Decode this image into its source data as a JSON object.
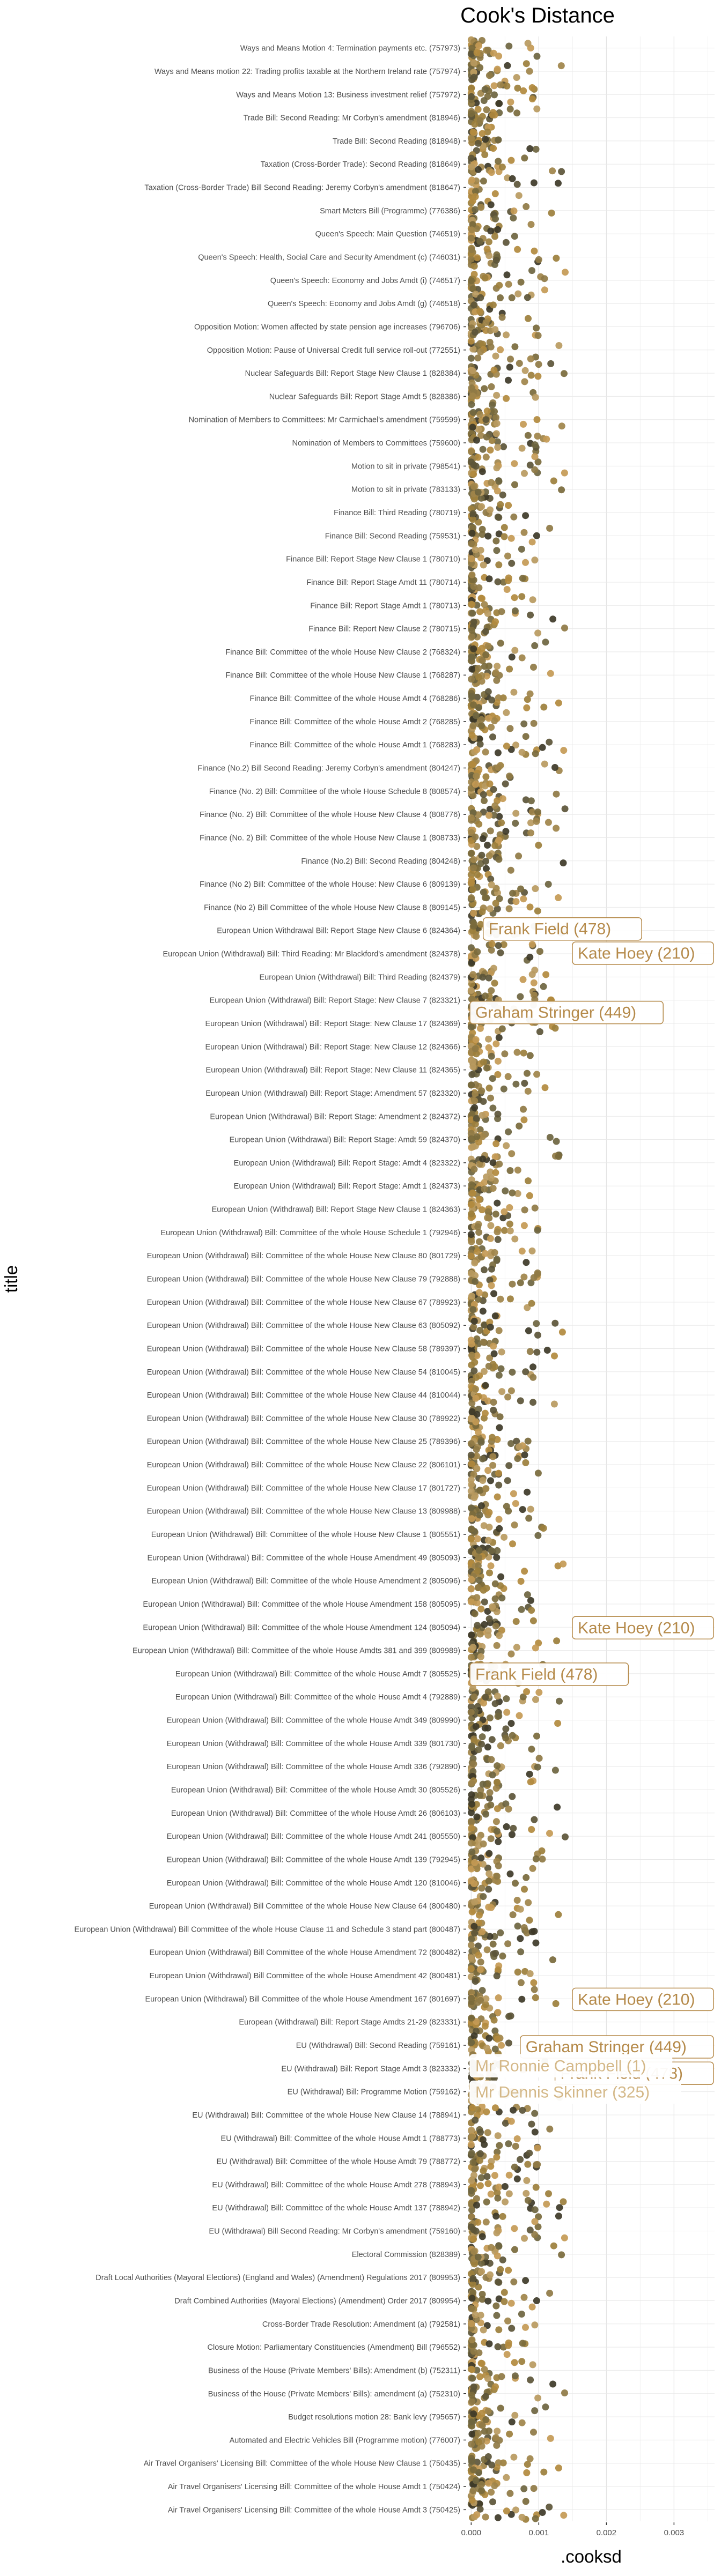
{
  "chart_data": {
    "type": "scatter",
    "title": "Cook's Distance",
    "xlabel": ".cooksd",
    "ylabel": "title",
    "xlim": [
      -5e-05,
      0.0036
    ],
    "x_ticks": [
      0.0,
      0.001,
      0.002,
      0.003
    ],
    "x_tick_labels": [
      "0.000",
      "0.001",
      "0.002",
      "0.003"
    ],
    "grid": true,
    "legend": "none",
    "categories": [
      "Ways and Means Motion 4: Termination payments etc. (757973)",
      "Ways and Means motion 22: Trading profits taxable at the Northern Ireland rate (757974)",
      "Ways and Means Motion 13: Business investment relief (757972)",
      "Trade Bill: Second Reading: Mr Corbyn's amendment (818946)",
      "Trade Bill: Second Reading (818948)",
      "Taxation (Cross-Border Trade): Second Reading (818649)",
      "Taxation (Cross-Border Trade) Bill Second Reading: Jeremy Corbyn's amendment  (818647)",
      "Smart Meters  Bill (Programme) (776386)",
      "Queen's Speech: Main Question (746519)",
      "Queen's Speech: Health, Social Care and Security Amendment (c) (746031)",
      "Queen's Speech: Economy and Jobs Amdt (i) (746517)",
      "Queen's Speech: Economy and Jobs Amdt (g) (746518)",
      "Opposition Motion: Women affected by state pension age increases (796706)",
      "Opposition Motion: Pause of Universal Credit full service roll-out (772551)",
      "Nuclear Safeguards Bill: Report Stage New Clause 1 (828384)",
      "Nuclear Safeguards Bill: Report Stage Amdt 5 (828386)",
      "Nomination of Members to Committees: Mr Carmichael's amendment (759599)",
      "Nomination of Members to Committees (759600)",
      "Motion to sit in private (798541)",
      "Motion to sit in private (783133)",
      "Finance Bill: Third Reading (780719)",
      "Finance Bill: Second Reading (759531)",
      "Finance Bill: Report Stage New Clause 1 (780710)",
      "Finance Bill: Report Stage Amdt 11 (780714)",
      "Finance Bill: Report Stage Amdt 1 (780713)",
      "Finance Bill: Report New Clause 2 (780715)",
      "Finance Bill: Committee of the whole House New Clause 2 (768324)",
      "Finance Bill: Committee of the whole House New Clause 1 (768287)",
      "Finance Bill: Committee of the whole House Amdt 4 (768286)",
      "Finance Bill: Committee of the whole House Amdt 2 (768285)",
      "Finance Bill: Committee of the whole House Amdt 1 (768283)",
      "Finance (No.2) Bill Second Reading: Jeremy Corbyn's amendment (804247)",
      "Finance (No. 2) Bill: Committee of the whole House Schedule 8 (808574)",
      "Finance (No. 2) Bill: Committee of the whole House New Clause 4 (808776)",
      "Finance (No. 2) Bill: Committee of the whole House New Clause 1 (808733)",
      "Finance (No.2) Bill: Second Reading (804248)",
      "Finance (No 2) Bill: Committee of the whole House: New Clause 6 (809139)",
      "Finance (No 2) Bill Committee of the whole House New Clause 8 (809145)",
      "European Union Withdrawal Bill: Report Stage New Clause 6  (824364)",
      "European Union (Withdrawal) Bill: Third Reading: Mr Blackford's amendment (824378)",
      "European Union (Withdrawal) Bill: Third Reading (824379)",
      "European Union (Withdrawal) Bill: Report Stage: New Clause 7 (823321)",
      "European Union (Withdrawal) Bill: Report Stage: New Clause 17 (824369)",
      "European Union (Withdrawal) Bill: Report Stage: New Clause 12 (824366)",
      "European Union (Withdrawal) Bill: Report Stage: New Clause 11 (824365)",
      "European Union (Withdrawal) Bill: Report Stage: Amendment 57 (823320)",
      "European Union (Withdrawal) Bill: Report Stage: Amendment 2 (824372)",
      "European Union (Withdrawal) Bill: Report Stage: Amdt 59 (824370)",
      "European Union (Withdrawal) Bill: Report Stage: Amdt 4 (823322)",
      "European Union (Withdrawal) Bill: Report Stage: Amdt 1 (824373)",
      "European Union (Withdrawal) Bill: Report Stage New Clause 1 (824363)",
      "European Union (Withdrawal) Bill: Committee of the whole House Schedule 1 (792946)",
      "European Union (Withdrawal) Bill: Committee of the whole House New Clause 80 (801729)",
      "European Union (Withdrawal) Bill: Committee of the whole House New Clause 79 (792888)",
      "European Union (Withdrawal) Bill: Committee of the whole House New Clause 67 (789923)",
      "European Union (Withdrawal) Bill: Committee of the whole House New Clause 63 (805092)",
      "European Union (Withdrawal) Bill: Committee of the whole House New Clause 58 (789397)",
      "European Union (Withdrawal) Bill: Committee of the whole House New Clause 54 (810045)",
      "European Union (Withdrawal) Bill: Committee of the whole House New Clause 44 (810044)",
      "European Union (Withdrawal) Bill: Committee of the whole House New Clause 30 (789922)",
      "European Union (Withdrawal) Bill: Committee of the whole House New Clause 25 (789396)",
      "European Union (Withdrawal) Bill: Committee of the whole House New Clause 22 (806101)",
      "European Union (Withdrawal) Bill: Committee of the whole House New Clause 17 (801727)",
      "European Union (Withdrawal) Bill: Committee of the whole House New Clause 13 (809988)",
      "European Union (Withdrawal) Bill: Committee of the whole House New Clause 1 (805551)",
      "European Union (Withdrawal) Bill: Committee of the whole House Amendment 49 (805093)",
      "European Union (Withdrawal) Bill: Committee of the whole House Amendment 2 (805096)",
      "European Union (Withdrawal) Bill: Committee of the whole House Amendment 158 (805095)",
      "European Union (Withdrawal) Bill: Committee of the whole House Amendment 124 (805094)",
      "European Union (Withdrawal) Bill: Committee of the whole House Amdts 381 and 399 (809989)",
      "European Union (Withdrawal) Bill: Committee of the whole House Amdt 7 (805525)",
      "European Union (Withdrawal) Bill: Committee of the whole House Amdt 4 (792889)",
      "European Union (Withdrawal) Bill: Committee of the whole House Amdt 349 (809990)",
      "European Union (Withdrawal) Bill: Committee of the whole House Amdt 339 (801730)",
      "European Union (Withdrawal) Bill: Committee of the whole House Amdt 336 (792890)",
      "European Union (Withdrawal) Bill: Committee of the whole House Amdt 30  (805526)",
      "European Union (Withdrawal) Bill: Committee of the whole House Amdt 26 (806103)",
      "European Union (Withdrawal) Bill: Committee of the whole House Amdt 241 (805550)",
      "European Union (Withdrawal) Bill: Committee of the whole House Amdt 139 (792945)",
      "European Union (Withdrawal) Bill: Committee of the whole House Amdt 120 (810046)",
      "European Union (Withdrawal) Bill Committee of the whole House New Clause 64 (800480)",
      "European Union (Withdrawal) Bill Committee of the whole House Clause 11 and Schedule 3 stand part (800487)",
      "European Union (Withdrawal) Bill Committee of the whole House Amendment 72 (800482)",
      "European Union (Withdrawal) Bill Committee of the whole House Amendment 42 (800481)",
      "European Union (Withdrawal) Bill Committee of the whole House Amendment 167 (801697)",
      "European (Withdrawal) Bill: Report Stage Amdts 21-29 (823331)",
      "EU (Withdrawal) Bill: Second Reading (759161)",
      "EU (Withdrawal) Bill: Report Stage Amdt 3 (823332)",
      "EU (Withdrawal) Bill: Programme Motion (759162)",
      "EU (Withdrawal) Bill: Committee of the whole House New Clause 14 (788941)",
      "EU (Withdrawal) Bill: Committee of the whole House Amdt 1 (788773)",
      "EU (Withdrawal) Bill: Committee of the whole House Amdt 79 (788772)",
      "EU (Withdrawal) Bill: Committee of the whole House Amdt 278 (788943)",
      "EU (Withdrawal) Bill: Committee of the whole House Amdt 137 (788942)",
      "EU (Withdrawal) Bill Second Reading: Mr Corbyn's amendment (759160)",
      "Electoral Commission (828389)",
      "Draft Local Authorities (Mayoral Elections) (England and Wales) (Amendment) Regulations 2017 (809953)",
      "Draft Combined Authorities (Mayoral Elections) (Amendment) Order 2017 (809954)",
      "Cross-Border Trade Resolution: Amendment (a) (792581)",
      "Closure Motion: Parliamentary Constituencies (Amendment) Bill (796552)",
      "Business of the House (Private Members' Bills): Amendment (b) (752311)",
      "Business of the House (Private Members' Bills): amendment (a) (752310)",
      "Budget resolutions motion 28: Bank levy (795657)",
      "Automated and Electric Vehicles Bill (Programme motion) (776007)",
      "Air Travel Organisers' Licensing Bill: Committee of the whole House New Clause 1 (750435)",
      "Air Travel Organisers' Licensing Bill: Committee of the whole House Amdt 1 (750424)",
      "Air Travel Organisers' Licensing Bill: Committee of the whole House Amdt 3 (750425)"
    ],
    "outliers": [
      {
        "category_index": 38,
        "x": 0.00135,
        "label": "Frank Field (478)"
      },
      {
        "category_index": 39,
        "x": 0.00295,
        "label": "Kate Hoey (210)"
      },
      {
        "category_index": 41,
        "x": 0.00118,
        "label": "Graham Stringer (449)"
      },
      {
        "category_index": 68,
        "x": 0.00305,
        "label": "Kate Hoey (210)"
      },
      {
        "category_index": 70,
        "x": 0.00115,
        "label": "Frank Field (478)"
      },
      {
        "category_index": 84,
        "x": 0.00315,
        "label": "Kate Hoey (210)"
      },
      {
        "category_index": 86,
        "x": 0.00275,
        "label": "Graham Stringer (449)"
      },
      {
        "category_index": 87,
        "x": 0.0029,
        "label": "Frank Field (478)"
      },
      {
        "category_index": 87,
        "x": 0.00025,
        "label": "Mr Ronnie Campbell (1)"
      },
      {
        "category_index": 88,
        "x": 0.0006,
        "label": "Mr Dennis Skinner (325)"
      }
    ],
    "colors": [
      "#3e3a28",
      "#5c5538",
      "#7a6a3c",
      "#8f7a45",
      "#a0844a",
      "#b28a3e",
      "#c49a55",
      "#9c7f3c",
      "#6e6540",
      "#b89a60"
    ],
    "label_color": "#b58a4a",
    "label_border": "#b58a4a",
    "label_light_color": "#d4b888"
  }
}
